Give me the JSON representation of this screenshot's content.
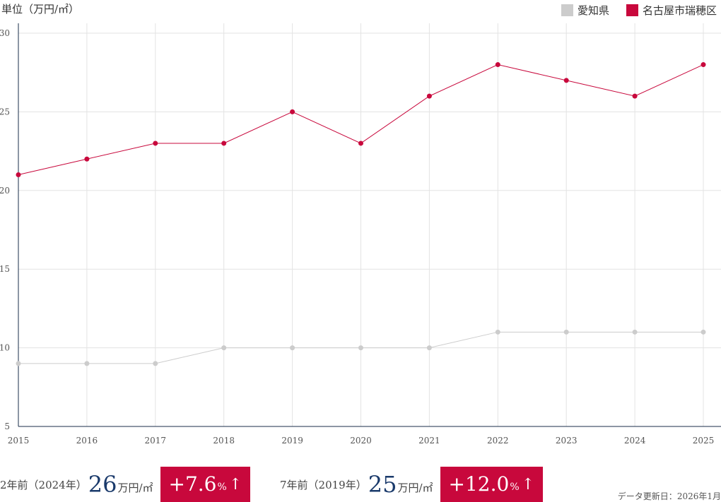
{
  "chart_data": {
    "type": "line",
    "ylabel": "単位（万円/㎡）",
    "x": [
      "2015",
      "2016",
      "2017",
      "2018",
      "2019",
      "2020",
      "2021",
      "2022",
      "2023",
      "2024",
      "2025"
    ],
    "ylim": [
      5,
      30
    ],
    "yticks": [
      5,
      10,
      15,
      20,
      25,
      30
    ],
    "grid": true,
    "legend_position": "top-right",
    "series": [
      {
        "name": "愛知県",
        "color": "#cccccc",
        "values": [
          9,
          9,
          9,
          10,
          10,
          10,
          10,
          11,
          11,
          11,
          11
        ]
      },
      {
        "name": "名古屋市瑞穂区",
        "color": "#c8083c",
        "values": [
          21,
          22,
          23,
          23,
          25,
          23,
          26,
          28,
          27,
          26,
          28
        ]
      }
    ]
  },
  "stats": [
    {
      "label": "2年前（2024年）",
      "value": "26",
      "unit": "万円/㎡",
      "change": "+7.6",
      "change_unit": "%",
      "arrow": "↑"
    },
    {
      "label": "7年前（2019年）",
      "value": "25",
      "unit": "万円/㎡",
      "change": "+12.0",
      "change_unit": "%",
      "arrow": "↑"
    }
  ],
  "updated": {
    "label": "データ更新日：",
    "value": "2026年1月"
  },
  "colors": {
    "accent": "#c8083c",
    "value_text": "#1a3a6b",
    "axis": "#1a2e4a",
    "grid": "#e3e3e3"
  }
}
